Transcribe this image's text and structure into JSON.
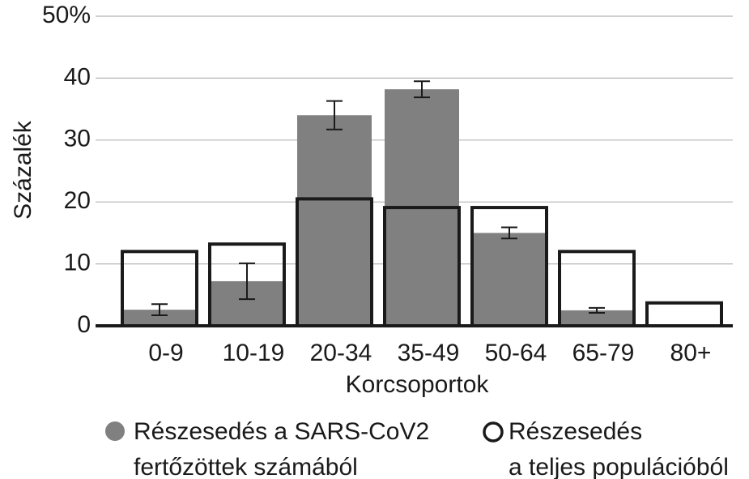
{
  "chart_data": {
    "type": "bar",
    "y_label": "Százalék",
    "x_label": "Korcsoportok",
    "categories": [
      "0-9",
      "10-19",
      "20-34",
      "35-49",
      "50-64",
      "65-79",
      "80+"
    ],
    "series": [
      {
        "name": "Részesedés a SARS-CoV2\nfertőzöttek számából",
        "color": "#808080",
        "style": "filled",
        "values": [
          2.6,
          7.2,
          34.0,
          38.2,
          15.0,
          2.5,
          0
        ],
        "errors": [
          0.9,
          2.9,
          2.3,
          1.3,
          0.9,
          0.4,
          null
        ]
      },
      {
        "name": "Részesedés\na teljes populációból",
        "color": "#1a1a1a",
        "style": "outline",
        "values": [
          12.0,
          13.2,
          20.5,
          19.1,
          19.1,
          12.0,
          3.7
        ]
      }
    ],
    "ylim": [
      0,
      50
    ],
    "yticks": [
      0,
      10,
      20,
      30,
      40,
      {
        "value": 50,
        "label": "50%"
      }
    ],
    "grid": true
  }
}
